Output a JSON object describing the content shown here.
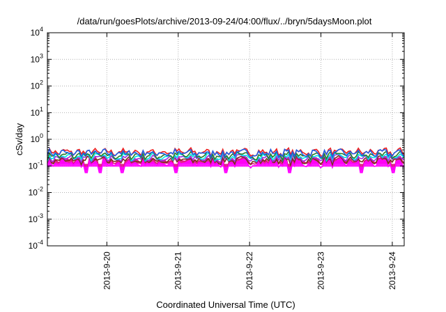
{
  "chart_data": {
    "type": "line",
    "title": "/data/run/goesPlots/archive/2013-09-24/04:00/flux/../bryn/5daysMoon.plot",
    "xlabel": "Coordinated Universal Time (UTC)",
    "ylabel": "cSv/day",
    "y_scale": "log",
    "ylim": [
      0.0001,
      10000
    ],
    "xlim": [
      "2013-09-19 04:00",
      "2013-09-24 04:00"
    ],
    "x_ticks": [
      "2013-9-20",
      "2013-9-21",
      "2013-9-22",
      "2013-9-23",
      "2013-9-24"
    ],
    "y_ticks": [
      {
        "base": "10",
        "exp": "-4"
      },
      {
        "base": "10",
        "exp": "-3"
      },
      {
        "base": "10",
        "exp": "-2"
      },
      {
        "base": "10",
        "exp": "-1"
      },
      {
        "base": "10",
        "exp": "0"
      },
      {
        "base": "10",
        "exp": "1"
      },
      {
        "base": "10",
        "exp": "2"
      },
      {
        "base": "10",
        "exp": "3"
      },
      {
        "base": "10",
        "exp": "4"
      }
    ],
    "grid": true,
    "series": [
      {
        "color": "#e0107f",
        "fill": true,
        "level": 0.16,
        "dips": [
          0.11,
          0.15,
          0.21,
          0.36,
          0.5,
          0.68,
          0.88,
          0.97
        ]
      },
      {
        "color": "#ff00ff",
        "fill": true,
        "level": 0.125,
        "dips": [
          0.11,
          0.15,
          0.21,
          0.36,
          0.5,
          0.68,
          0.88,
          0.97
        ]
      },
      {
        "color": "#7a2f1c",
        "fill": false,
        "level": 0.16,
        "dips": []
      },
      {
        "color": "#9a2fe0",
        "fill": false,
        "level": 0.19,
        "dips": []
      },
      {
        "color": "#00e5e5",
        "fill": false,
        "level": 0.22,
        "dips": []
      },
      {
        "color": "#2a7a2a",
        "fill": false,
        "level": 0.25,
        "dips": []
      },
      {
        "color": "#ee1c1c",
        "fill": false,
        "level": 0.33,
        "dips": []
      },
      {
        "color": "#1f5fe6",
        "fill": false,
        "level": 0.3,
        "dips": []
      }
    ]
  }
}
